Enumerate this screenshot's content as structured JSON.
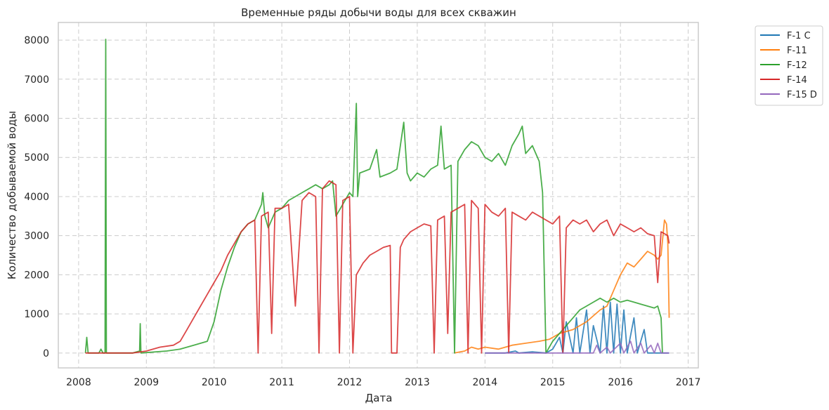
{
  "chart_data": {
    "type": "line",
    "title": "Временные ряды добычи воды для всех скважин",
    "xlabel": "Дата",
    "ylabel": "Количество добываемой воды",
    "xlim": [
      2007.7,
      2017.15
    ],
    "ylim": [
      -380,
      8450
    ],
    "x_ticks": [
      2008,
      2009,
      2010,
      2011,
      2012,
      2013,
      2014,
      2015,
      2016,
      2017
    ],
    "y_ticks": [
      0,
      1000,
      2000,
      3000,
      4000,
      5000,
      6000,
      7000,
      8000
    ],
    "grid": true,
    "legend_position": "outside-top-right",
    "series": [
      {
        "name": "F-1 C",
        "color": "#1f77b4",
        "points": [
          [
            2014.0,
            0
          ],
          [
            2014.3,
            0
          ],
          [
            2014.45,
            50
          ],
          [
            2014.5,
            0
          ],
          [
            2014.7,
            30
          ],
          [
            2014.9,
            0
          ],
          [
            2015.0,
            100
          ],
          [
            2015.1,
            400
          ],
          [
            2015.15,
            0
          ],
          [
            2015.2,
            800
          ],
          [
            2015.3,
            0
          ],
          [
            2015.35,
            900
          ],
          [
            2015.4,
            0
          ],
          [
            2015.5,
            1100
          ],
          [
            2015.55,
            0
          ],
          [
            2015.6,
            700
          ],
          [
            2015.7,
            0
          ],
          [
            2015.75,
            1200
          ],
          [
            2015.8,
            0
          ],
          [
            2015.85,
            1300
          ],
          [
            2015.9,
            0
          ],
          [
            2015.95,
            1250
          ],
          [
            2016.0,
            0
          ],
          [
            2016.05,
            1100
          ],
          [
            2016.1,
            0
          ],
          [
            2016.2,
            900
          ],
          [
            2016.25,
            0
          ],
          [
            2016.35,
            600
          ],
          [
            2016.4,
            0
          ],
          [
            2016.72,
            0
          ]
        ]
      },
      {
        "name": "F-11",
        "color": "#ff7f0e",
        "points": [
          [
            2013.55,
            0
          ],
          [
            2013.7,
            50
          ],
          [
            2013.8,
            150
          ],
          [
            2013.9,
            100
          ],
          [
            2014.0,
            150
          ],
          [
            2014.2,
            100
          ],
          [
            2014.4,
            200
          ],
          [
            2014.6,
            250
          ],
          [
            2014.8,
            300
          ],
          [
            2014.95,
            350
          ],
          [
            2015.1,
            500
          ],
          [
            2015.3,
            600
          ],
          [
            2015.5,
            800
          ],
          [
            2015.7,
            1100
          ],
          [
            2015.8,
            1200
          ],
          [
            2015.9,
            1600
          ],
          [
            2016.0,
            2000
          ],
          [
            2016.1,
            2300
          ],
          [
            2016.2,
            2200
          ],
          [
            2016.3,
            2400
          ],
          [
            2016.4,
            2600
          ],
          [
            2016.5,
            2500
          ],
          [
            2016.55,
            2400
          ],
          [
            2016.6,
            2500
          ],
          [
            2016.65,
            3400
          ],
          [
            2016.68,
            3300
          ],
          [
            2016.7,
            2800
          ],
          [
            2016.72,
            900
          ]
        ]
      },
      {
        "name": "F-12",
        "color": "#2ca02c",
        "points": [
          [
            2008.1,
            0
          ],
          [
            2008.12,
            400
          ],
          [
            2008.14,
            0
          ],
          [
            2008.3,
            0
          ],
          [
            2008.33,
            100
          ],
          [
            2008.36,
            0
          ],
          [
            2008.39,
            0
          ],
          [
            2008.4,
            8020
          ],
          [
            2008.41,
            0
          ],
          [
            2008.8,
            0
          ],
          [
            2008.9,
            50
          ],
          [
            2008.91,
            750
          ],
          [
            2008.92,
            0
          ],
          [
            2009.3,
            50
          ],
          [
            2009.5,
            100
          ],
          [
            2009.7,
            200
          ],
          [
            2009.9,
            300
          ],
          [
            2010.0,
            800
          ],
          [
            2010.1,
            1600
          ],
          [
            2010.2,
            2200
          ],
          [
            2010.3,
            2700
          ],
          [
            2010.4,
            3100
          ],
          [
            2010.5,
            3300
          ],
          [
            2010.6,
            3400
          ],
          [
            2010.65,
            3600
          ],
          [
            2010.7,
            3800
          ],
          [
            2010.72,
            4100
          ],
          [
            2010.75,
            3500
          ],
          [
            2010.8,
            3200
          ],
          [
            2010.9,
            3600
          ],
          [
            2011.0,
            3700
          ],
          [
            2011.1,
            3900
          ],
          [
            2011.2,
            4000
          ],
          [
            2011.3,
            4100
          ],
          [
            2011.4,
            4200
          ],
          [
            2011.5,
            4300
          ],
          [
            2011.6,
            4200
          ],
          [
            2011.7,
            4300
          ],
          [
            2011.75,
            4400
          ],
          [
            2011.8,
            3500
          ],
          [
            2011.9,
            3800
          ],
          [
            2012.0,
            4100
          ],
          [
            2012.05,
            4000
          ],
          [
            2012.1,
            6380
          ],
          [
            2012.12,
            4000
          ],
          [
            2012.15,
            4600
          ],
          [
            2012.3,
            4700
          ],
          [
            2012.4,
            5200
          ],
          [
            2012.45,
            4500
          ],
          [
            2012.6,
            4600
          ],
          [
            2012.7,
            4700
          ],
          [
            2012.8,
            5900
          ],
          [
            2012.85,
            4600
          ],
          [
            2012.9,
            4400
          ],
          [
            2013.0,
            4600
          ],
          [
            2013.1,
            4500
          ],
          [
            2013.2,
            4700
          ],
          [
            2013.3,
            4800
          ],
          [
            2013.35,
            5800
          ],
          [
            2013.4,
            4700
          ],
          [
            2013.5,
            4800
          ],
          [
            2013.55,
            0
          ],
          [
            2013.6,
            4900
          ],
          [
            2013.7,
            5200
          ],
          [
            2013.8,
            5400
          ],
          [
            2013.9,
            5300
          ],
          [
            2014.0,
            5000
          ],
          [
            2014.1,
            4900
          ],
          [
            2014.2,
            5100
          ],
          [
            2014.3,
            4800
          ],
          [
            2014.4,
            5300
          ],
          [
            2014.5,
            5600
          ],
          [
            2014.55,
            5800
          ],
          [
            2014.6,
            5100
          ],
          [
            2014.7,
            5300
          ],
          [
            2014.8,
            4900
          ],
          [
            2014.85,
            4100
          ],
          [
            2014.9,
            0
          ],
          [
            2015.0,
            300
          ],
          [
            2015.1,
            500
          ],
          [
            2015.2,
            700
          ],
          [
            2015.3,
            900
          ],
          [
            2015.4,
            1100
          ],
          [
            2015.5,
            1200
          ],
          [
            2015.6,
            1300
          ],
          [
            2015.7,
            1400
          ],
          [
            2015.8,
            1300
          ],
          [
            2015.9,
            1400
          ],
          [
            2016.0,
            1300
          ],
          [
            2016.1,
            1350
          ],
          [
            2016.2,
            1300
          ],
          [
            2016.3,
            1250
          ],
          [
            2016.4,
            1200
          ],
          [
            2016.5,
            1150
          ],
          [
            2016.55,
            1200
          ],
          [
            2016.6,
            900
          ],
          [
            2016.62,
            0
          ]
        ]
      },
      {
        "name": "F-14",
        "color": "#d62728",
        "points": [
          [
            2008.1,
            0
          ],
          [
            2008.8,
            0
          ],
          [
            2009.0,
            50
          ],
          [
            2009.2,
            150
          ],
          [
            2009.4,
            200
          ],
          [
            2009.5,
            300
          ],
          [
            2009.6,
            600
          ],
          [
            2009.7,
            900
          ],
          [
            2009.8,
            1200
          ],
          [
            2009.9,
            1500
          ],
          [
            2010.0,
            1800
          ],
          [
            2010.1,
            2100
          ],
          [
            2010.2,
            2500
          ],
          [
            2010.3,
            2800
          ],
          [
            2010.4,
            3100
          ],
          [
            2010.5,
            3300
          ],
          [
            2010.6,
            3400
          ],
          [
            2010.65,
            0
          ],
          [
            2010.7,
            3500
          ],
          [
            2010.8,
            3600
          ],
          [
            2010.85,
            500
          ],
          [
            2010.9,
            3700
          ],
          [
            2011.0,
            3700
          ],
          [
            2011.1,
            3800
          ],
          [
            2011.2,
            1200
          ],
          [
            2011.3,
            3900
          ],
          [
            2011.4,
            4100
          ],
          [
            2011.5,
            4000
          ],
          [
            2011.55,
            0
          ],
          [
            2011.6,
            4200
          ],
          [
            2011.7,
            4400
          ],
          [
            2011.8,
            4300
          ],
          [
            2011.85,
            0
          ],
          [
            2011.9,
            3900
          ],
          [
            2012.0,
            4000
          ],
          [
            2012.05,
            0
          ],
          [
            2012.1,
            2000
          ],
          [
            2012.2,
            2300
          ],
          [
            2012.3,
            2500
          ],
          [
            2012.4,
            2600
          ],
          [
            2012.5,
            2700
          ],
          [
            2012.6,
            2750
          ],
          [
            2012.62,
            0
          ],
          [
            2012.7,
            0
          ],
          [
            2012.75,
            2700
          ],
          [
            2012.8,
            2900
          ],
          [
            2012.9,
            3100
          ],
          [
            2013.0,
            3200
          ],
          [
            2013.1,
            3300
          ],
          [
            2013.2,
            3250
          ],
          [
            2013.25,
            0
          ],
          [
            2013.3,
            3400
          ],
          [
            2013.4,
            3500
          ],
          [
            2013.45,
            500
          ],
          [
            2013.5,
            3600
          ],
          [
            2013.6,
            3700
          ],
          [
            2013.7,
            3800
          ],
          [
            2013.75,
            0
          ],
          [
            2013.8,
            3900
          ],
          [
            2013.9,
            3700
          ],
          [
            2013.95,
            0
          ],
          [
            2014.0,
            3800
          ],
          [
            2014.1,
            3600
          ],
          [
            2014.2,
            3500
          ],
          [
            2014.3,
            3700
          ],
          [
            2014.35,
            0
          ],
          [
            2014.4,
            3600
          ],
          [
            2014.5,
            3500
          ],
          [
            2014.6,
            3400
          ],
          [
            2014.7,
            3600
          ],
          [
            2014.8,
            3500
          ],
          [
            2014.9,
            3400
          ],
          [
            2015.0,
            3300
          ],
          [
            2015.1,
            3500
          ],
          [
            2015.15,
            0
          ],
          [
            2015.2,
            3200
          ],
          [
            2015.3,
            3400
          ],
          [
            2015.4,
            3300
          ],
          [
            2015.5,
            3400
          ],
          [
            2015.6,
            3100
          ],
          [
            2015.7,
            3300
          ],
          [
            2015.8,
            3400
          ],
          [
            2015.9,
            3000
          ],
          [
            2016.0,
            3300
          ],
          [
            2016.1,
            3200
          ],
          [
            2016.2,
            3100
          ],
          [
            2016.3,
            3200
          ],
          [
            2016.4,
            3050
          ],
          [
            2016.5,
            3000
          ],
          [
            2016.55,
            1800
          ],
          [
            2016.6,
            3100
          ],
          [
            2016.7,
            3000
          ],
          [
            2016.72,
            2800
          ]
        ]
      },
      {
        "name": "F-15 D",
        "color": "#9467bd",
        "points": [
          [
            2014.0,
            0
          ],
          [
            2015.6,
            0
          ],
          [
            2015.65,
            200
          ],
          [
            2015.7,
            0
          ],
          [
            2015.8,
            150
          ],
          [
            2015.85,
            0
          ],
          [
            2016.0,
            250
          ],
          [
            2016.05,
            0
          ],
          [
            2016.15,
            300
          ],
          [
            2016.2,
            0
          ],
          [
            2016.3,
            250
          ],
          [
            2016.35,
            0
          ],
          [
            2016.45,
            200
          ],
          [
            2016.5,
            0
          ],
          [
            2016.55,
            250
          ],
          [
            2016.6,
            0
          ],
          [
            2016.72,
            0
          ]
        ]
      }
    ]
  }
}
